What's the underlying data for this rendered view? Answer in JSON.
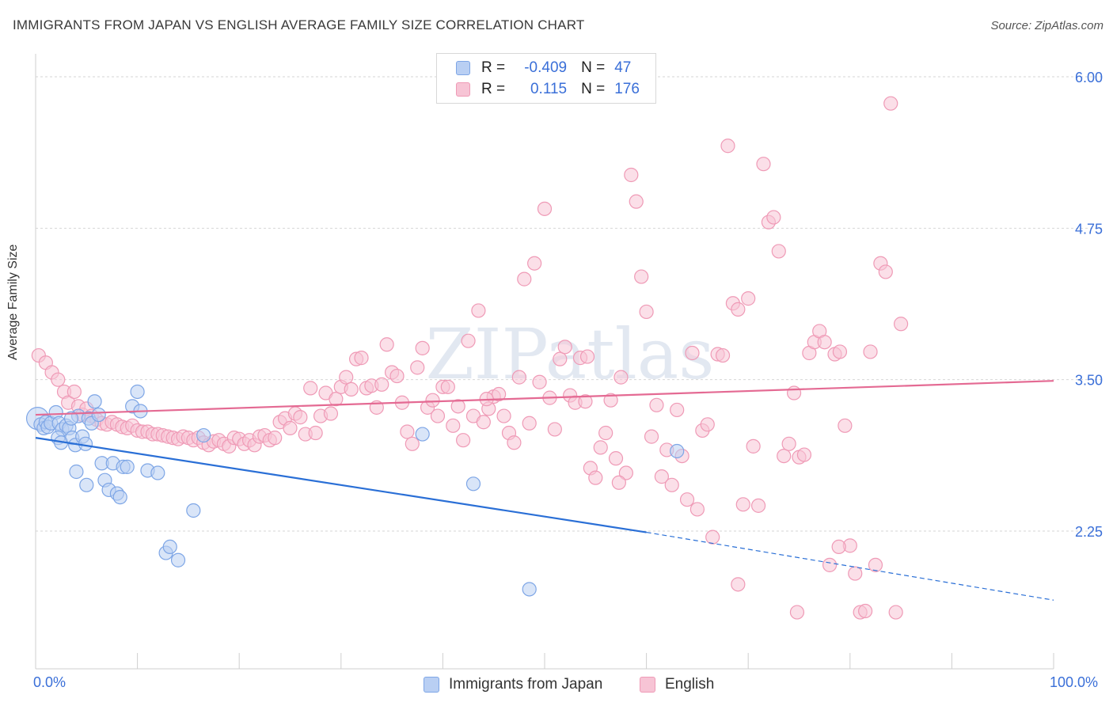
{
  "title": "IMMIGRANTS FROM JAPAN VS ENGLISH AVERAGE FAMILY SIZE CORRELATION CHART",
  "source": "Source: ZipAtlas.com",
  "watermark": "ZIPatlas",
  "legend": {
    "rows": [
      {
        "r_label": "R =",
        "r_value": "-0.409",
        "n_label": "N =",
        "n_value": "47"
      },
      {
        "r_label": "R =",
        "r_value": "0.115",
        "n_label": "N =",
        "n_value": "176"
      }
    ]
  },
  "colors": {
    "japan_fill": "#b9cff3",
    "japan_stroke": "#7ea6e6",
    "japan_line": "#2a6fd6",
    "english_fill": "#f7c4d5",
    "english_stroke": "#ef9ab6",
    "english_line": "#e46a93",
    "tick_text": "#3a6fd8",
    "grid": "#d6d6d6"
  },
  "chart_data": {
    "type": "scatter",
    "title": "IMMIGRANTS FROM JAPAN VS ENGLISH AVERAGE FAMILY SIZE CORRELATION CHART",
    "xlabel": "",
    "ylabel": "Average Family Size",
    "xlim": [
      0,
      100
    ],
    "ylim": [
      1.27,
      6.18
    ],
    "y_ticks": [
      2.25,
      3.5,
      4.75,
      6.0
    ],
    "y_tick_labels": [
      "2.25",
      "3.50",
      "4.75",
      "6.00"
    ],
    "x_tick_labels": [
      "0.0%",
      "100.0%"
    ],
    "legend_position": "top-center",
    "series": [
      {
        "name": "Immigrants from Japan",
        "r": -0.409,
        "n": 47,
        "trend": {
          "x0": 0,
          "y0": 3.02,
          "x1": 60,
          "y1": 2.24,
          "dashed_to_x": 100,
          "dashed_to_y": 1.68
        },
        "points": [
          [
            0.2,
            3.18
          ],
          [
            0.5,
            3.13
          ],
          [
            0.8,
            3.1
          ],
          [
            1.0,
            3.15
          ],
          [
            1.2,
            3.11
          ],
          [
            1.5,
            3.14
          ],
          [
            2.0,
            3.23
          ],
          [
            2.3,
            3.14
          ],
          [
            2.6,
            3.09
          ],
          [
            2.2,
            3.02
          ],
          [
            2.5,
            2.98
          ],
          [
            3.0,
            3.12
          ],
          [
            3.3,
            3.1
          ],
          [
            3.6,
            3.02
          ],
          [
            3.9,
            2.96
          ],
          [
            4.2,
            3.2
          ],
          [
            4.6,
            3.03
          ],
          [
            4.9,
            2.97
          ],
          [
            5.2,
            3.18
          ],
          [
            5.5,
            3.14
          ],
          [
            5.8,
            3.32
          ],
          [
            6.2,
            3.21
          ],
          [
            6.5,
            2.81
          ],
          [
            6.8,
            2.67
          ],
          [
            7.2,
            2.59
          ],
          [
            7.6,
            2.81
          ],
          [
            8.0,
            2.56
          ],
          [
            8.3,
            2.53
          ],
          [
            8.6,
            2.78
          ],
          [
            9.0,
            2.78
          ],
          [
            9.5,
            3.28
          ],
          [
            10.0,
            3.4
          ],
          [
            10.3,
            3.24
          ],
          [
            11.0,
            2.75
          ],
          [
            12.0,
            2.73
          ],
          [
            12.8,
            2.07
          ],
          [
            13.2,
            2.12
          ],
          [
            14.0,
            2.01
          ],
          [
            15.5,
            2.42
          ],
          [
            16.5,
            3.04
          ],
          [
            38.0,
            3.05
          ],
          [
            43.0,
            2.64
          ],
          [
            48.5,
            1.77
          ],
          [
            63.0,
            2.91
          ],
          [
            4.0,
            2.74
          ],
          [
            5.0,
            2.63
          ],
          [
            3.5,
            3.18
          ]
        ]
      },
      {
        "name": "English",
        "r": 0.115,
        "n": 176,
        "trend": {
          "x0": 0,
          "y0": 3.21,
          "x1": 100,
          "y1": 3.49
        },
        "points": [
          [
            0.3,
            3.7
          ],
          [
            1.0,
            3.64
          ],
          [
            1.6,
            3.56
          ],
          [
            2.2,
            3.5
          ],
          [
            2.8,
            3.4
          ],
          [
            3.2,
            3.31
          ],
          [
            3.8,
            3.4
          ],
          [
            4.2,
            3.28
          ],
          [
            4.6,
            3.21
          ],
          [
            5.0,
            3.26
          ],
          [
            5.5,
            3.2
          ],
          [
            6.0,
            3.17
          ],
          [
            6.5,
            3.14
          ],
          [
            7.0,
            3.13
          ],
          [
            7.5,
            3.15
          ],
          [
            8.0,
            3.13
          ],
          [
            8.5,
            3.11
          ],
          [
            9.0,
            3.1
          ],
          [
            9.5,
            3.12
          ],
          [
            10.0,
            3.08
          ],
          [
            10.5,
            3.07
          ],
          [
            11.0,
            3.07
          ],
          [
            11.5,
            3.05
          ],
          [
            12.0,
            3.05
          ],
          [
            12.5,
            3.04
          ],
          [
            13.0,
            3.03
          ],
          [
            13.5,
            3.02
          ],
          [
            14.0,
            3.01
          ],
          [
            14.5,
            3.03
          ],
          [
            15.0,
            3.02
          ],
          [
            15.5,
            3.0
          ],
          [
            16.0,
            3.02
          ],
          [
            16.5,
            2.98
          ],
          [
            17.0,
            2.96
          ],
          [
            17.5,
            2.99
          ],
          [
            18.0,
            3.0
          ],
          [
            18.5,
            2.97
          ],
          [
            19.0,
            2.95
          ],
          [
            19.5,
            3.02
          ],
          [
            20.0,
            3.01
          ],
          [
            20.5,
            2.97
          ],
          [
            21.0,
            3.0
          ],
          [
            21.5,
            2.96
          ],
          [
            22.0,
            3.03
          ],
          [
            22.5,
            3.04
          ],
          [
            23.0,
            3.0
          ],
          [
            23.5,
            3.02
          ],
          [
            24.0,
            3.15
          ],
          [
            24.5,
            3.18
          ],
          [
            25.0,
            3.1
          ],
          [
            25.5,
            3.22
          ],
          [
            26.0,
            3.19
          ],
          [
            26.5,
            3.05
          ],
          [
            27.0,
            3.43
          ],
          [
            27.5,
            3.06
          ],
          [
            28.0,
            3.2
          ],
          [
            28.5,
            3.39
          ],
          [
            29.0,
            3.22
          ],
          [
            29.5,
            3.34
          ],
          [
            30.0,
            3.44
          ],
          [
            30.5,
            3.52
          ],
          [
            31.0,
            3.42
          ],
          [
            31.5,
            3.67
          ],
          [
            32.0,
            3.68
          ],
          [
            32.5,
            3.43
          ],
          [
            33.0,
            3.45
          ],
          [
            33.5,
            3.27
          ],
          [
            34.0,
            3.46
          ],
          [
            34.5,
            3.79
          ],
          [
            35.0,
            3.56
          ],
          [
            35.5,
            3.53
          ],
          [
            36.0,
            3.31
          ],
          [
            36.5,
            3.07
          ],
          [
            37.0,
            2.97
          ],
          [
            37.5,
            3.6
          ],
          [
            38.0,
            3.76
          ],
          [
            38.5,
            3.27
          ],
          [
            39.0,
            3.33
          ],
          [
            39.5,
            3.2
          ],
          [
            40.0,
            3.44
          ],
          [
            40.5,
            3.44
          ],
          [
            41.0,
            3.12
          ],
          [
            41.5,
            3.28
          ],
          [
            42.0,
            3.0
          ],
          [
            42.5,
            3.82
          ],
          [
            43.0,
            3.2
          ],
          [
            43.5,
            4.07
          ],
          [
            44.0,
            3.15
          ],
          [
            44.5,
            3.26
          ],
          [
            45.0,
            3.36
          ],
          [
            45.5,
            3.38
          ],
          [
            46.0,
            3.2
          ],
          [
            46.5,
            3.06
          ],
          [
            47.0,
            2.98
          ],
          [
            47.5,
            3.52
          ],
          [
            48.0,
            4.33
          ],
          [
            48.5,
            3.14
          ],
          [
            49.0,
            4.46
          ],
          [
            49.5,
            3.48
          ],
          [
            50.0,
            4.91
          ],
          [
            50.5,
            3.35
          ],
          [
            51.0,
            3.09
          ],
          [
            51.5,
            3.67
          ],
          [
            52.0,
            3.77
          ],
          [
            52.5,
            3.37
          ],
          [
            53.0,
            3.31
          ],
          [
            53.5,
            3.68
          ],
          [
            54.0,
            3.32
          ],
          [
            54.5,
            2.77
          ],
          [
            55.0,
            2.69
          ],
          [
            55.5,
            2.94
          ],
          [
            56.0,
            3.06
          ],
          [
            56.5,
            3.33
          ],
          [
            57.0,
            2.85
          ],
          [
            57.5,
            3.52
          ],
          [
            58.0,
            2.73
          ],
          [
            58.5,
            5.19
          ],
          [
            59.0,
            4.97
          ],
          [
            59.5,
            4.35
          ],
          [
            60.0,
            4.06
          ],
          [
            60.5,
            3.03
          ],
          [
            61.0,
            3.29
          ],
          [
            61.5,
            2.7
          ],
          [
            62.0,
            2.92
          ],
          [
            62.5,
            2.63
          ],
          [
            63.0,
            3.25
          ],
          [
            63.5,
            2.87
          ],
          [
            64.0,
            2.51
          ],
          [
            64.5,
            3.72
          ],
          [
            65.0,
            2.43
          ],
          [
            65.5,
            3.08
          ],
          [
            66.0,
            3.13
          ],
          [
            66.5,
            2.2
          ],
          [
            67.0,
            3.71
          ],
          [
            67.5,
            3.7
          ],
          [
            68.0,
            5.43
          ],
          [
            68.5,
            4.13
          ],
          [
            69.0,
            4.08
          ],
          [
            69.5,
            2.47
          ],
          [
            70.0,
            4.17
          ],
          [
            70.5,
            2.95
          ],
          [
            71.0,
            2.46
          ],
          [
            71.5,
            5.28
          ],
          [
            72.0,
            4.8
          ],
          [
            72.5,
            4.84
          ],
          [
            73.0,
            4.56
          ],
          [
            73.5,
            2.87
          ],
          [
            74.0,
            2.97
          ],
          [
            74.5,
            3.39
          ],
          [
            75.0,
            2.86
          ],
          [
            75.5,
            2.88
          ],
          [
            76.0,
            3.72
          ],
          [
            76.5,
            3.81
          ],
          [
            77.0,
            3.9
          ],
          [
            77.5,
            3.81
          ],
          [
            78.0,
            1.97
          ],
          [
            78.5,
            3.71
          ],
          [
            79.0,
            3.73
          ],
          [
            79.5,
            3.12
          ],
          [
            80.0,
            2.13
          ],
          [
            80.5,
            1.9
          ],
          [
            81.0,
            1.58
          ],
          [
            81.5,
            1.59
          ],
          [
            82.0,
            3.73
          ],
          [
            82.5,
            1.97
          ],
          [
            83.0,
            4.46
          ],
          [
            83.5,
            4.39
          ],
          [
            84.0,
            5.78
          ],
          [
            84.5,
            1.58
          ],
          [
            85.0,
            3.96
          ],
          [
            57.3,
            2.65
          ],
          [
            54.2,
            3.69
          ],
          [
            69.0,
            1.81
          ],
          [
            74.8,
            1.58
          ],
          [
            78.9,
            2.12
          ],
          [
            44.3,
            3.34
          ]
        ]
      }
    ]
  },
  "bottom_legend": {
    "japan_label": "Immigrants from Japan",
    "english_label": "English"
  }
}
